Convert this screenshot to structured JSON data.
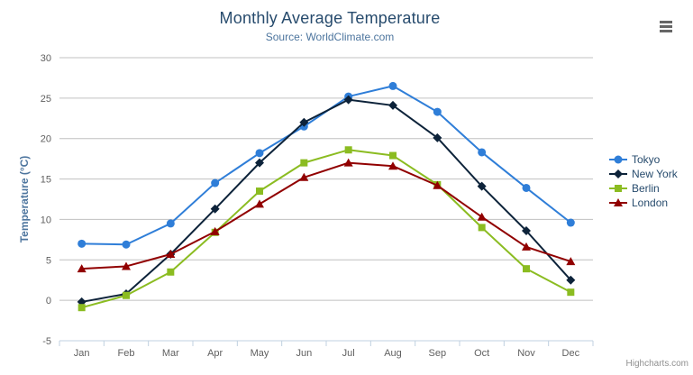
{
  "chart": {
    "title": "Monthly Average Temperature",
    "subtitle": "Source: WorldClimate.com",
    "credits_label": "Highcharts.com"
  },
  "chart_data": {
    "type": "line",
    "title": "Monthly Average Temperature",
    "subtitle": "Source: WorldClimate.com",
    "categories": [
      "Jan",
      "Feb",
      "Mar",
      "Apr",
      "May",
      "Jun",
      "Jul",
      "Aug",
      "Sep",
      "Oct",
      "Nov",
      "Dec"
    ],
    "series": [
      {
        "id": "tokyo",
        "name": "Tokyo",
        "color": "#2f7ed8",
        "marker": "circle",
        "values": [
          7.0,
          6.9,
          9.5,
          14.5,
          18.2,
          21.5,
          25.2,
          26.5,
          23.3,
          18.3,
          13.9,
          9.6
        ]
      },
      {
        "id": "new-york",
        "name": "New York",
        "color": "#0d233a",
        "marker": "diamond",
        "values": [
          -0.2,
          0.8,
          5.7,
          11.3,
          17.0,
          22.0,
          24.8,
          24.1,
          20.1,
          14.1,
          8.6,
          2.5
        ]
      },
      {
        "id": "berlin",
        "name": "Berlin",
        "color": "#8bbc21",
        "marker": "square",
        "values": [
          -0.9,
          0.6,
          3.5,
          8.4,
          13.5,
          17.0,
          18.6,
          17.9,
          14.3,
          9.0,
          3.9,
          1.0
        ]
      },
      {
        "id": "london",
        "name": "London",
        "color": "#910000",
        "marker": "triangle",
        "values": [
          3.9,
          4.2,
          5.7,
          8.5,
          11.9,
          15.2,
          17.0,
          16.6,
          14.2,
          10.3,
          6.6,
          4.8
        ]
      }
    ],
    "xlabel": "",
    "ylabel": "Temperature (°C)",
    "ylim": [
      -5,
      30
    ],
    "tick_interval": 5,
    "y_tick_labels": [
      "-5",
      "0",
      "5",
      "10",
      "15",
      "20",
      "25",
      "30"
    ],
    "grid": true,
    "legend_position": "right",
    "style": {
      "grid_color": "#c0c0c0",
      "axis_line_color": "#c0d0e0",
      "axis_label_color": "#606060",
      "title_color": "#274b6d",
      "subtitle_color": "#4d759e",
      "axis_title_color": "#4d759e",
      "legend_text_color": "#274b6d",
      "credits_color": "#909090",
      "menu_icon_color": "#666666",
      "line_width": 2
    }
  }
}
